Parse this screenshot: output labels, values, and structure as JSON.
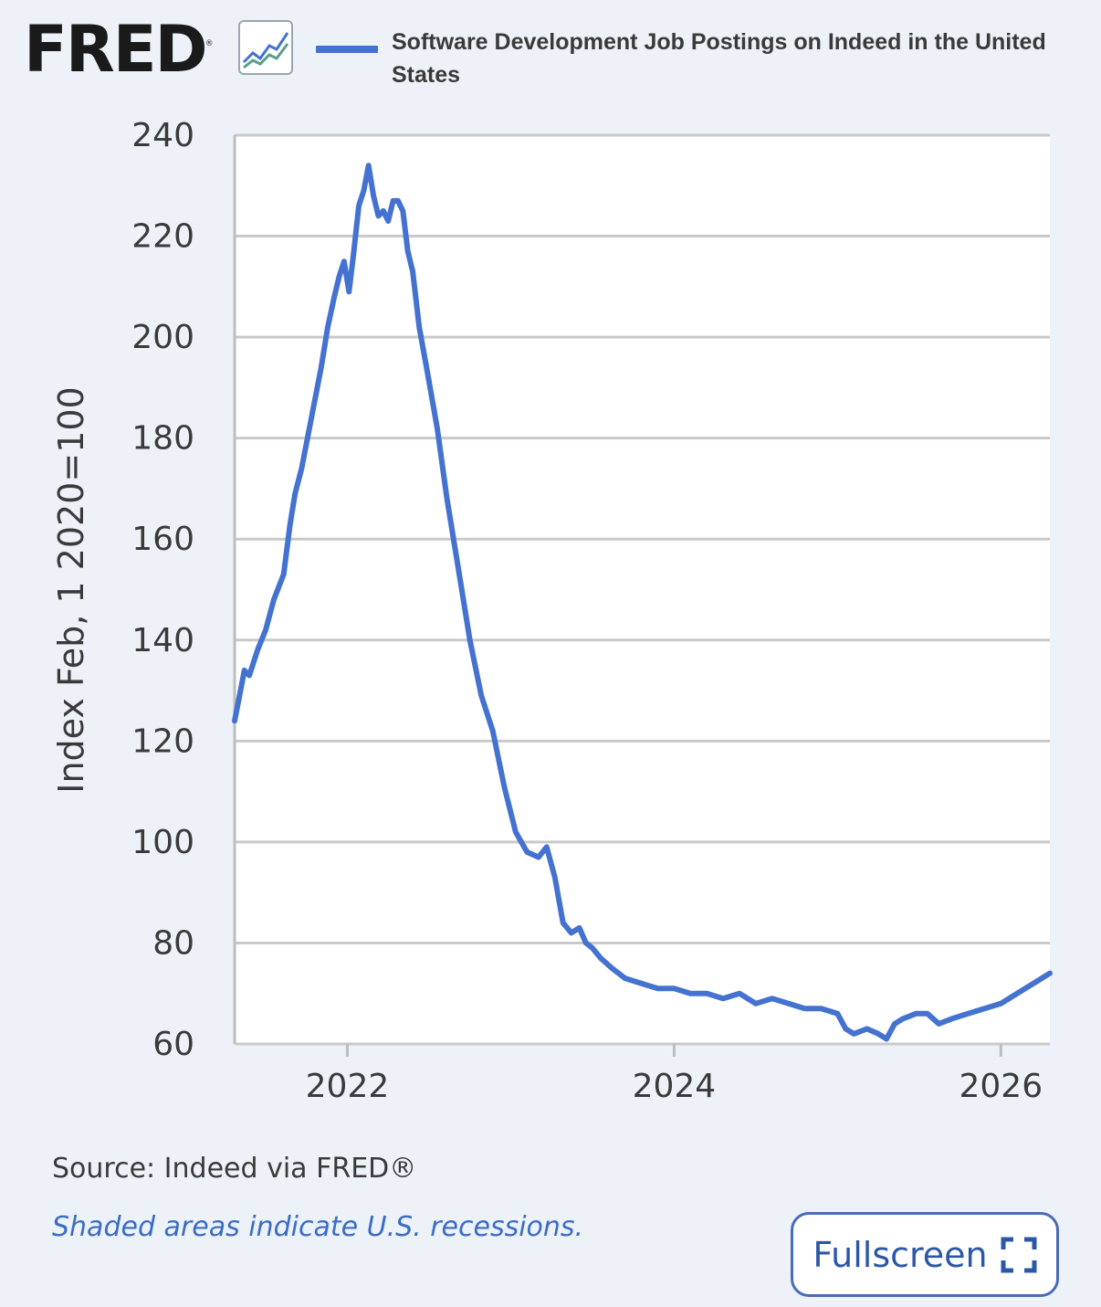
{
  "header": {
    "logo_text": "FRED",
    "logo_reg": "®",
    "legend_label": "Software Development Job Postings on Indeed in the United States",
    "legend_color": "#4472d1"
  },
  "footer": {
    "source": "Source: Indeed via FRED®",
    "recession_note": "Shaded areas indicate U.S. recessions.",
    "fullscreen_label": "Fullscreen"
  },
  "chart_data": {
    "type": "line",
    "title": "",
    "xlabel": "",
    "ylabel": "Index Feb, 1 2020=100",
    "ylim": [
      60,
      240
    ],
    "xlim": [
      2021.31,
      2026.3
    ],
    "yticks": [
      60,
      80,
      100,
      120,
      140,
      160,
      180,
      200,
      220,
      240
    ],
    "xticks": [
      2022,
      2024,
      2026
    ],
    "xtick_labels": [
      "2022",
      "2024",
      "2026"
    ],
    "grid": true,
    "legend": "top",
    "color": "#4472d1",
    "series": [
      {
        "name": "Software Development Job Postings on Indeed in the United States",
        "x": [
          2021.31,
          2021.34,
          2021.37,
          2021.4,
          2021.45,
          2021.5,
          2021.55,
          2021.61,
          2021.65,
          2021.68,
          2021.72,
          2021.78,
          2021.84,
          2021.88,
          2021.92,
          2021.95,
          2021.98,
          2022.01,
          2022.04,
          2022.07,
          2022.1,
          2022.13,
          2022.16,
          2022.19,
          2022.22,
          2022.25,
          2022.28,
          2022.31,
          2022.34,
          2022.37,
          2022.4,
          2022.44,
          2022.49,
          2022.55,
          2022.61,
          2022.68,
          2022.75,
          2022.82,
          2022.89,
          2022.96,
          2023.03,
          2023.1,
          2023.17,
          2023.22,
          2023.27,
          2023.32,
          2023.37,
          2023.42,
          2023.46,
          2023.5,
          2023.55,
          2023.62,
          2023.7,
          2023.8,
          2023.9,
          2024.0,
          2024.1,
          2024.2,
          2024.3,
          2024.4,
          2024.5,
          2024.6,
          2024.7,
          2024.8,
          2024.9,
          2025.0,
          2025.05,
          2025.1,
          2025.18,
          2025.25,
          2025.3,
          2025.35,
          2025.4,
          2025.48,
          2025.55,
          2025.62,
          2025.7,
          2025.8,
          2025.9,
          2026.0,
          2026.1,
          2026.2,
          2026.3
        ],
        "values": [
          124,
          129,
          134,
          133,
          138,
          142,
          148,
          153,
          163,
          169,
          174,
          184,
          194,
          202,
          208,
          212,
          215,
          209,
          217,
          226,
          229,
          234,
          228,
          224,
          225,
          223,
          227,
          227,
          225,
          217,
          213,
          202,
          193,
          182,
          168,
          154,
          140,
          129,
          122,
          111,
          102,
          98,
          97,
          99,
          93,
          84,
          82,
          83,
          80,
          79,
          77,
          75,
          73,
          72,
          71,
          71,
          70,
          70,
          69,
          70,
          68,
          69,
          68,
          67,
          67,
          66,
          63,
          62,
          63,
          62,
          61,
          64,
          65,
          66,
          66,
          64,
          65,
          66,
          67,
          68,
          70,
          72,
          74
        ]
      }
    ]
  }
}
